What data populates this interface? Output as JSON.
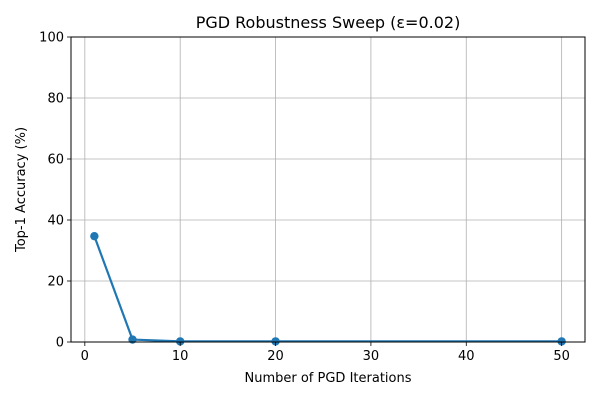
{
  "chart_data": {
    "type": "line",
    "title": "PGD Robustness Sweep (ε=0.02)",
    "xlabel": "Number of PGD Iterations",
    "ylabel": "Top-1 Accuracy (%)",
    "xlim": [
      -1.45,
      52.45
    ],
    "ylim": [
      0,
      100
    ],
    "xticks": [
      0,
      10,
      20,
      30,
      40,
      50
    ],
    "yticks": [
      0,
      20,
      40,
      60,
      80,
      100
    ],
    "grid": true,
    "legend": "none",
    "series": [
      {
        "color": "#1f77b4",
        "marker": "circle",
        "x": [
          1,
          5,
          10,
          20,
          50
        ],
        "y": [
          34.7,
          0.8,
          0.2,
          0.2,
          0.2
        ]
      }
    ]
  }
}
